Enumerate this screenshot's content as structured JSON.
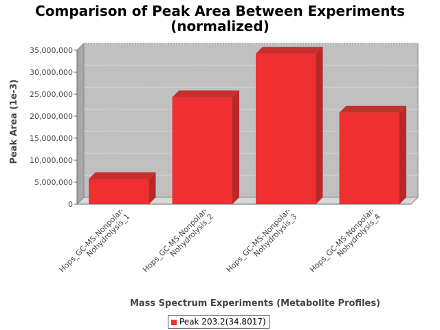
{
  "title_line1": "Comparison of Peak Area Between Experiments",
  "title_line2": "(normalized)",
  "legend_label": "Peak 203.2(34.8017)",
  "colors": {
    "bar": "#f03030",
    "bar_dark": "#b82828",
    "bar_top": "#c83030",
    "plot_bg": "#c0c0c0"
  },
  "chart_data": {
    "type": "bar",
    "title": "Comparison of Peak Area Between Experiments (normalized)",
    "xlabel": "Mass Spectrum Experiments (Metabolite Profiles)",
    "ylabel": "Peak Area (1e-3)",
    "ylim": [
      0,
      35000000
    ],
    "yticks": [
      0,
      5000000,
      10000000,
      15000000,
      20000000,
      25000000,
      30000000,
      35000000
    ],
    "ytick_labels": [
      "0",
      "5,000,000",
      "10,000,000",
      "15,000,000",
      "20,000,000",
      "25,000,000",
      "30,000,000",
      "35,000,000"
    ],
    "categories": [
      [
        "Hops_GC-MS-Nonpolar-",
        "Nohydrolysis_1"
      ],
      [
        "Hops_GC-MS-Nonpolar-",
        "Nohydrolysis_2"
      ],
      [
        "Hops_GC-MS-Nonpolar-",
        "Nohydrolysis_3"
      ],
      [
        "Hops_GC-MS-Nonpolar-",
        "Nohydrolysis_4"
      ]
    ],
    "series": [
      {
        "name": "Peak 203.2(34.8017)",
        "values": [
          5700000,
          24300000,
          34200000,
          20800000
        ]
      }
    ],
    "grid": true,
    "legend_position": "bottom"
  }
}
